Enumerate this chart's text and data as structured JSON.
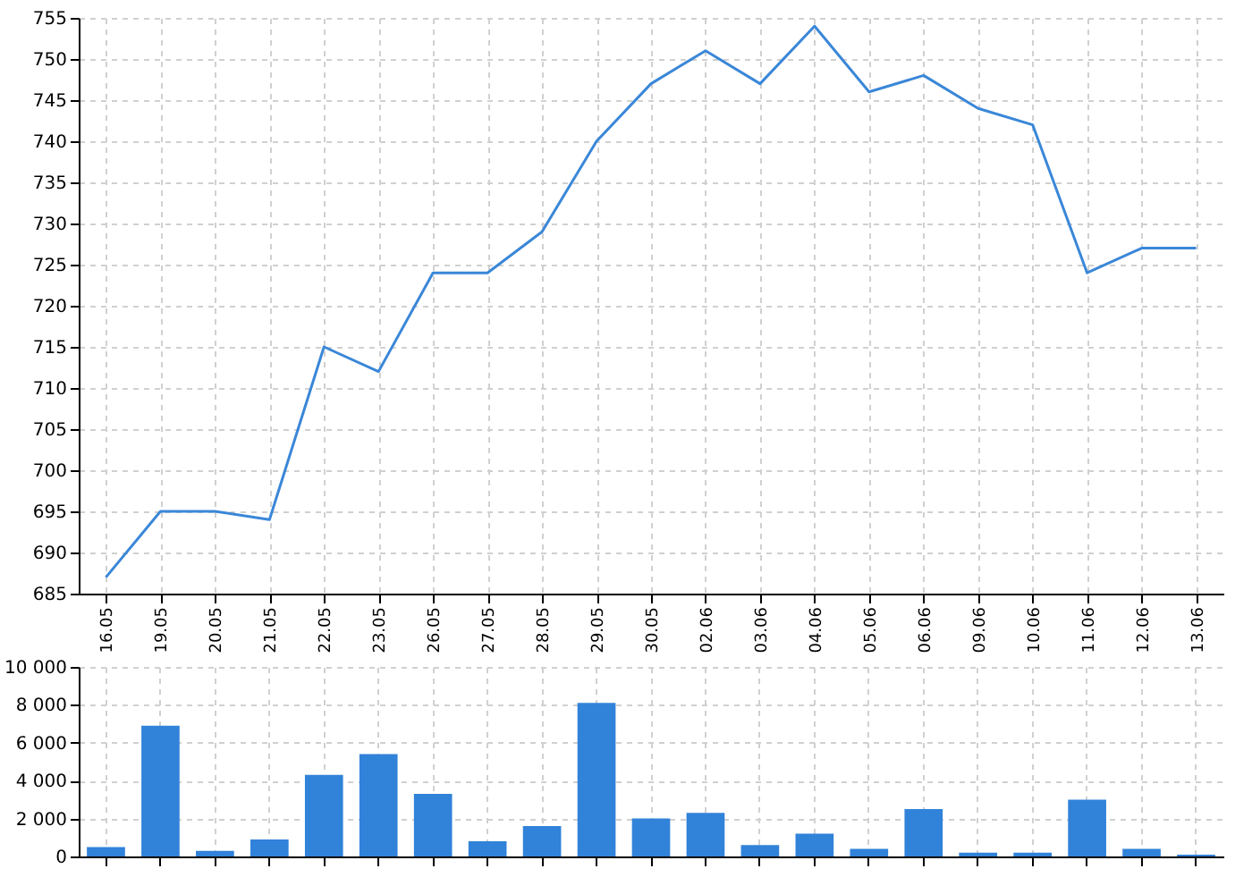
{
  "chart_data": [
    {
      "type": "line",
      "categories": [
        "16.05",
        "19.05",
        "20.05",
        "21.05",
        "22.05",
        "23.05",
        "26.05",
        "27.05",
        "28.05",
        "29.05",
        "30.05",
        "02.06",
        "03.06",
        "04.06",
        "05.06",
        "06.06",
        "09.06",
        "10.06",
        "11.06",
        "12.06",
        "13.06"
      ],
      "series": [
        {
          "color": "#3a87d8",
          "values": [
            687,
            695,
            695,
            694,
            715,
            712,
            724,
            724,
            729,
            740,
            747,
            751,
            747,
            754,
            746,
            748,
            744,
            742,
            724,
            727,
            727
          ]
        }
      ],
      "ylim": [
        685,
        755
      ],
      "yticks": [
        685,
        690,
        695,
        700,
        705,
        710,
        715,
        720,
        725,
        730,
        735,
        740,
        745,
        750,
        755
      ],
      "grid": true,
      "marker": "none",
      "line_style": "solid"
    },
    {
      "type": "bar",
      "categories": [
        "16.05",
        "19.05",
        "20.05",
        "21.05",
        "22.05",
        "23.05",
        "26.05",
        "27.05",
        "28.05",
        "29.05",
        "30.05",
        "02.06",
        "03.06",
        "04.06",
        "05.06",
        "06.06",
        "09.06",
        "10.06",
        "11.06",
        "12.06",
        "13.06"
      ],
      "series": [
        {
          "color": "#3182d9",
          "values": [
            500,
            6900,
            300,
            900,
            4300,
            5400,
            3300,
            800,
            1600,
            8100,
            2000,
            2300,
            600,
            1200,
            400,
            2500,
            200,
            200,
            3000,
            400,
            100
          ]
        }
      ],
      "ylim": [
        0,
        10000
      ],
      "yticks": [
        0,
        {
          "value": 2000,
          "label": "2 000"
        },
        {
          "value": 4000,
          "label": "4 000"
        },
        {
          "value": 6000,
          "label": "6 000"
        },
        {
          "value": 8000,
          "label": "8 000"
        },
        {
          "value": 10000,
          "label": "10 000"
        }
      ],
      "grid": true,
      "tick_labels": "y"
    }
  ]
}
